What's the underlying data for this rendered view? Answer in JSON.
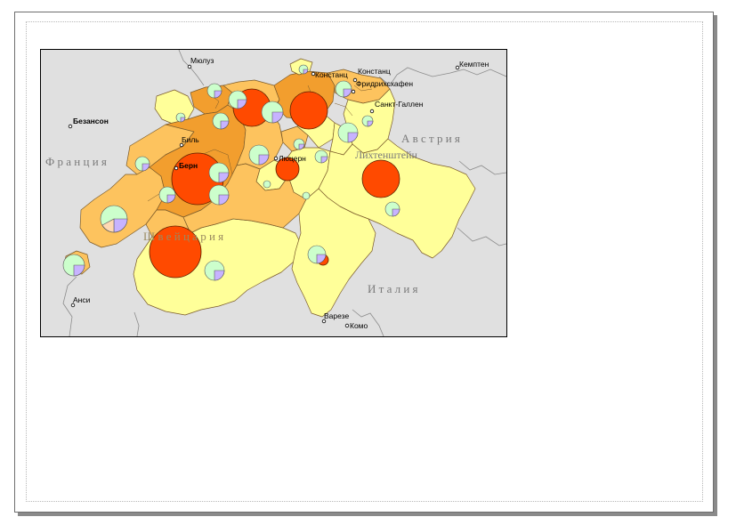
{
  "colors": {
    "background": "#e0e0e0",
    "neighbor_border": "#8c8c8c",
    "region_light": "#ffff99",
    "region_medium": "#fdc35e",
    "region_dark": "#f29e2e",
    "region_border": "#7a5a2a",
    "big_circle": "#ff4a00",
    "pie_green": "#ccffcc",
    "pie_lavender": "#c7b3ff",
    "pie_peach": "#ffd9b3"
  },
  "labels": {
    "countries": {
      "france": "Ф р а н ц и я",
      "switzerland": "Ш в е й ц а р и я",
      "austria": "А в с т р и я",
      "italy": "И т а л и я",
      "liechtenstein": "Лихтенштейн"
    },
    "cities": [
      {
        "id": "mulhouse",
        "name": "Мюлуз",
        "bold": false
      },
      {
        "id": "besancon",
        "name": "Безансон",
        "bold": true
      },
      {
        "id": "konstanz-1",
        "name": "Констанц",
        "bold": false
      },
      {
        "id": "konstanz-2",
        "name": "Констанц",
        "bold": false
      },
      {
        "id": "friedrichshafen",
        "name": "Фридрихсхафен",
        "bold": false
      },
      {
        "id": "kempten",
        "name": "Кемптен",
        "bold": false
      },
      {
        "id": "st-gallen",
        "name": "Санкт-Галлен",
        "bold": false
      },
      {
        "id": "biel",
        "name": "Биль",
        "bold": false
      },
      {
        "id": "bern",
        "name": "Берн",
        "bold": true
      },
      {
        "id": "luzern",
        "name": "Люцерн",
        "bold": false
      },
      {
        "id": "annecy",
        "name": "Анси",
        "bold": false
      },
      {
        "id": "varese",
        "name": "Варезе",
        "bold": false
      },
      {
        "id": "como",
        "name": "Комо",
        "bold": false
      }
    ]
  },
  "symbols": {
    "icons": [
      "city-point-icon",
      "large-proportional-circle-icon",
      "pie-chart-icon"
    ]
  }
}
